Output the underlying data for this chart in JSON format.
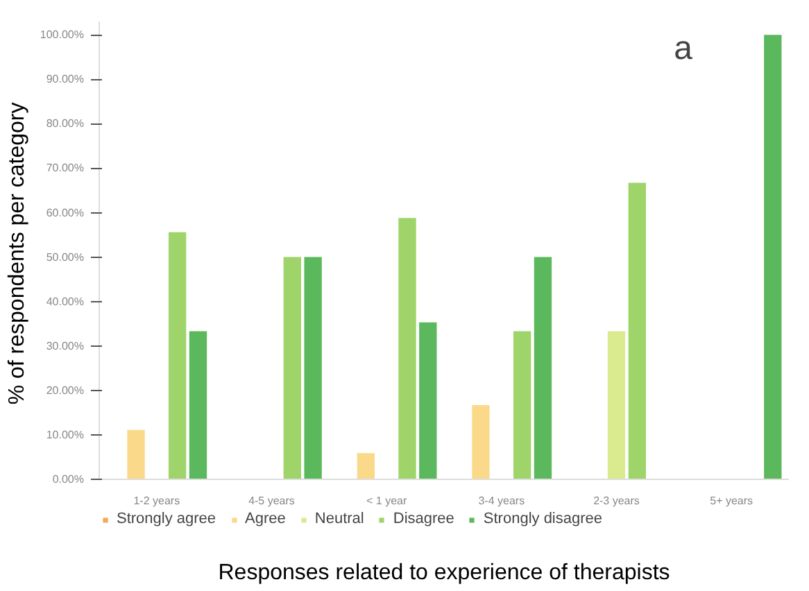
{
  "chart_data": {
    "type": "bar",
    "xlabel": "Responses related to experience of therapists",
    "ylabel": "% of  respondents per category",
    "categories": [
      "1-2 years",
      "4-5 years",
      "< 1 year",
      "3-4 years",
      "2-3 years",
      "5+ years"
    ],
    "series": [
      {
        "name": "Strongly agree",
        "color": "#f4a85a",
        "values": [
          null,
          null,
          null,
          null,
          null,
          null
        ]
      },
      {
        "name": "Agree",
        "color": "#fad98a",
        "values": [
          11.1,
          null,
          5.9,
          16.7,
          null,
          null
        ]
      },
      {
        "name": "Neutral",
        "color": "#d9ea8f",
        "values": [
          null,
          null,
          null,
          null,
          33.3,
          null
        ]
      },
      {
        "name": "Disagree",
        "color": "#9fd46a",
        "values": [
          55.6,
          50,
          58.8,
          33.3,
          66.7,
          null
        ]
      },
      {
        "name": "Strongly disagree",
        "color": "#5cb85c",
        "values": [
          33.3,
          50,
          35.3,
          50,
          null,
          100
        ]
      }
    ],
    "ylim": [
      0,
      103
    ],
    "yticks": [
      {
        "value": 0,
        "label": "0.00%"
      },
      {
        "value": 10,
        "label": "10.00%"
      },
      {
        "value": 20,
        "label": "20.00%"
      },
      {
        "value": 30,
        "label": "30.00%"
      },
      {
        "value": 40,
        "label": "40.00%"
      },
      {
        "value": 50,
        "label": "50.00%"
      },
      {
        "value": 60,
        "label": "60.00%"
      },
      {
        "value": 70,
        "label": "70.00%"
      },
      {
        "value": 80,
        "label": "80.00%"
      },
      {
        "value": 90,
        "label": "90.00%"
      },
      {
        "value": 100,
        "label": "100.00%"
      }
    ],
    "annotations": [
      "a"
    ],
    "grid": false,
    "legend": "bottom"
  }
}
